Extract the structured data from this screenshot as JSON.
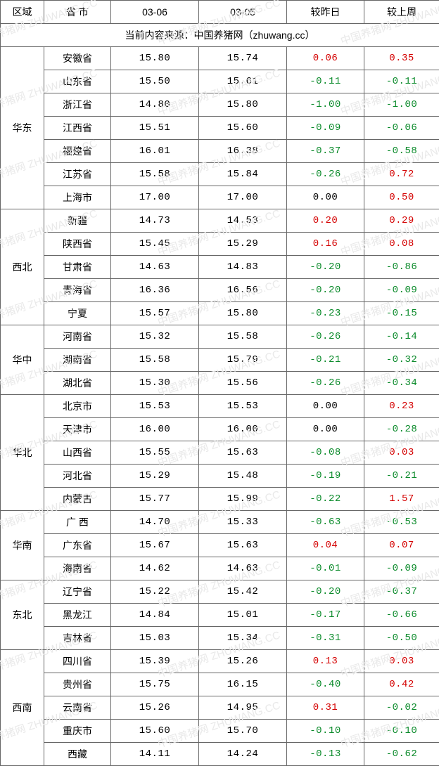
{
  "colors": {
    "border": "#666666",
    "pos": "#d40000",
    "neg": "#0a8a2a",
    "neutral": "#000000",
    "text": "#000000",
    "watermark": "#e9e9e9"
  },
  "columns": {
    "region": "区域",
    "province": "省 市",
    "d1": "03-06",
    "d2": "03-05",
    "vsDay": "较昨日",
    "vsWeek": "较上周"
  },
  "sourceLine": "当前内容来源：中国养猪网（zhuwang.cc）",
  "watermarkText": "中国养猪网 ZHUWANG.CC",
  "regions": [
    {
      "name": "华东",
      "rows": [
        {
          "prov": "安徽省",
          "d1": "15.80",
          "d2": "15.74",
          "vd": "0.06",
          "vw": "0.35"
        },
        {
          "prov": "山东省",
          "d1": "15.50",
          "d2": "15.61",
          "vd": "-0.11",
          "vw": "-0.11"
        },
        {
          "prov": "浙江省",
          "d1": "14.80",
          "d2": "15.80",
          "vd": "-1.00",
          "vw": "-1.00"
        },
        {
          "prov": "江西省",
          "d1": "15.51",
          "d2": "15.60",
          "vd": "-0.09",
          "vw": "-0.06"
        },
        {
          "prov": "福建省",
          "d1": "16.01",
          "d2": "16.38",
          "vd": "-0.37",
          "vw": "-0.58"
        },
        {
          "prov": "江苏省",
          "d1": "15.58",
          "d2": "15.84",
          "vd": "-0.26",
          "vw": "0.72"
        },
        {
          "prov": "上海市",
          "d1": "17.00",
          "d2": "17.00",
          "vd": "0.00",
          "vw": "0.50"
        }
      ]
    },
    {
      "name": "西北",
      "rows": [
        {
          "prov": "新疆",
          "d1": "14.73",
          "d2": "14.53",
          "vd": "0.20",
          "vw": "0.29"
        },
        {
          "prov": "陕西省",
          "d1": "15.45",
          "d2": "15.29",
          "vd": "0.16",
          "vw": "0.08"
        },
        {
          "prov": "甘肃省",
          "d1": "14.63",
          "d2": "14.83",
          "vd": "-0.20",
          "vw": "-0.86"
        },
        {
          "prov": "青海省",
          "d1": "16.36",
          "d2": "16.56",
          "vd": "-0.20",
          "vw": "-0.09"
        },
        {
          "prov": "宁夏",
          "d1": "15.57",
          "d2": "15.80",
          "vd": "-0.23",
          "vw": "-0.15"
        }
      ]
    },
    {
      "name": "华中",
      "rows": [
        {
          "prov": "河南省",
          "d1": "15.32",
          "d2": "15.58",
          "vd": "-0.26",
          "vw": "-0.14"
        },
        {
          "prov": "湖南省",
          "d1": "15.58",
          "d2": "15.79",
          "vd": "-0.21",
          "vw": "-0.32"
        },
        {
          "prov": "湖北省",
          "d1": "15.30",
          "d2": "15.56",
          "vd": "-0.26",
          "vw": "-0.34"
        }
      ]
    },
    {
      "name": "华北",
      "rows": [
        {
          "prov": "北京市",
          "d1": "15.53",
          "d2": "15.53",
          "vd": "0.00",
          "vw": "0.23"
        },
        {
          "prov": "天津市",
          "d1": "16.00",
          "d2": "16.00",
          "vd": "0.00",
          "vw": "-0.28"
        },
        {
          "prov": "山西省",
          "d1": "15.55",
          "d2": "15.63",
          "vd": "-0.08",
          "vw": "0.03"
        },
        {
          "prov": "河北省",
          "d1": "15.29",
          "d2": "15.48",
          "vd": "-0.19",
          "vw": "-0.21"
        },
        {
          "prov": "内蒙古",
          "d1": "15.77",
          "d2": "15.99",
          "vd": "-0.22",
          "vw": "1.57"
        }
      ]
    },
    {
      "name": "华南",
      "rows": [
        {
          "prov": "广 西",
          "d1": "14.70",
          "d2": "15.33",
          "vd": "-0.63",
          "vw": "-0.53"
        },
        {
          "prov": "广东省",
          "d1": "15.67",
          "d2": "15.63",
          "vd": "0.04",
          "vw": "0.07"
        },
        {
          "prov": "海南省",
          "d1": "14.62",
          "d2": "14.63",
          "vd": "-0.01",
          "vw": "-0.09"
        }
      ]
    },
    {
      "name": "东北",
      "rows": [
        {
          "prov": "辽宁省",
          "d1": "15.22",
          "d2": "15.42",
          "vd": "-0.20",
          "vw": "-0.37"
        },
        {
          "prov": "黑龙江",
          "d1": "14.84",
          "d2": "15.01",
          "vd": "-0.17",
          "vw": "-0.66"
        },
        {
          "prov": "吉林省",
          "d1": "15.03",
          "d2": "15.34",
          "vd": "-0.31",
          "vw": "-0.50"
        }
      ]
    },
    {
      "name": "西南",
      "rows": [
        {
          "prov": "四川省",
          "d1": "15.39",
          "d2": "15.26",
          "vd": "0.13",
          "vw": "0.03"
        },
        {
          "prov": "贵州省",
          "d1": "15.75",
          "d2": "16.15",
          "vd": "-0.40",
          "vw": "0.42"
        },
        {
          "prov": "云南省",
          "d1": "15.26",
          "d2": "14.95",
          "vd": "0.31",
          "vw": "-0.02"
        },
        {
          "prov": "重庆市",
          "d1": "15.60",
          "d2": "15.70",
          "vd": "-0.10",
          "vw": "-0.10"
        },
        {
          "prov": "西藏",
          "d1": "14.11",
          "d2": "14.24",
          "vd": "-0.13",
          "vw": "-0.62"
        }
      ]
    }
  ]
}
